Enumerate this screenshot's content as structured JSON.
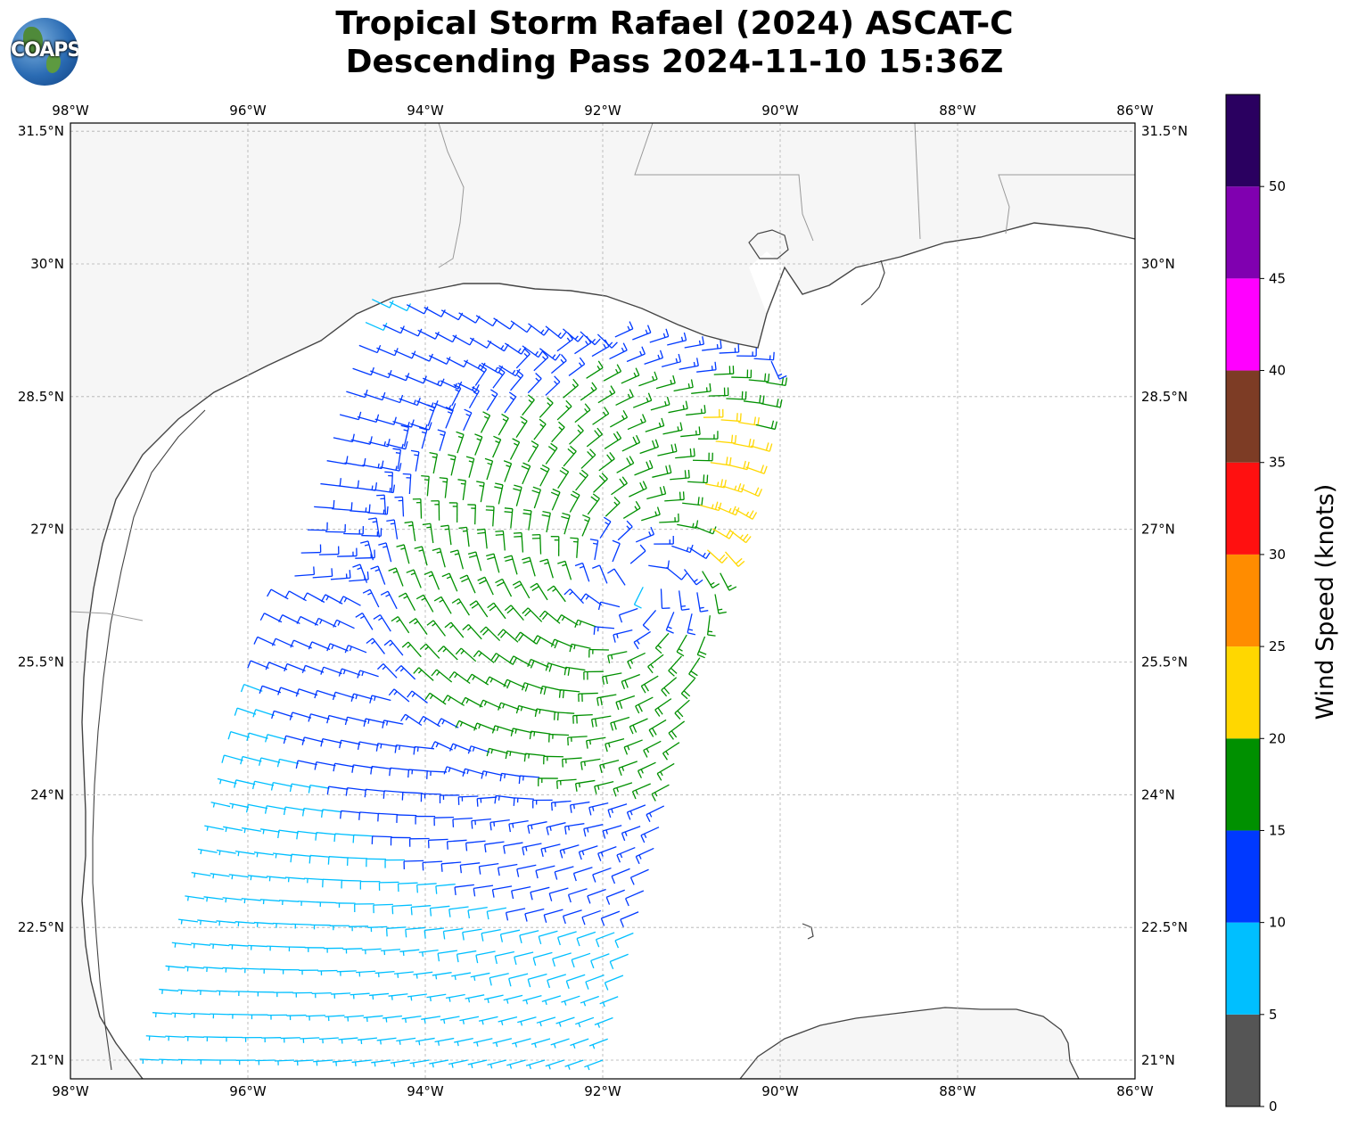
{
  "header": {
    "title_line1": "Tropical Storm Rafael (2024) ASCAT-C",
    "title_line2": "Descending Pass 2024-11-10 15:36Z",
    "logo_text": "COAPS"
  },
  "map": {
    "lon_range": [
      -98,
      -86
    ],
    "lat_range": [
      20.8,
      31.6
    ],
    "lon_ticks": [
      {
        "value": -98,
        "label": "98°W"
      },
      {
        "value": -96,
        "label": "96°W"
      },
      {
        "value": -94,
        "label": "94°W"
      },
      {
        "value": -92,
        "label": "92°W"
      },
      {
        "value": -90,
        "label": "90°W"
      },
      {
        "value": -88,
        "label": "88°W"
      },
      {
        "value": -86,
        "label": "86°W"
      }
    ],
    "lat_ticks": [
      {
        "value": 31.5,
        "label": "31.5°N"
      },
      {
        "value": 30,
        "label": "30°N"
      },
      {
        "value": 28.5,
        "label": "28.5°N"
      },
      {
        "value": 27,
        "label": "27°N"
      },
      {
        "value": 25.5,
        "label": "25.5°N"
      },
      {
        "value": 24,
        "label": "24°N"
      },
      {
        "value": 22.5,
        "label": "22.5°N"
      },
      {
        "value": 21,
        "label": "21°N"
      }
    ],
    "gridlines": true,
    "storm_center": {
      "lon": -91.6,
      "lat": 26.4
    },
    "swath_corners": [
      {
        "lon": -97.0,
        "lat": 21.0
      },
      {
        "lon": -94.6,
        "lat": 29.6
      },
      {
        "lon": -90.1,
        "lat": 28.9
      },
      {
        "lon": -92.0,
        "lat": 21.0
      }
    ]
  },
  "colorbar": {
    "label": "Wind Speed (knots)",
    "bins": [
      {
        "min": 0,
        "max": 5,
        "color": "#555555"
      },
      {
        "min": 5,
        "max": 10,
        "color": "#00bfff"
      },
      {
        "min": 10,
        "max": 15,
        "color": "#0039ff"
      },
      {
        "min": 15,
        "max": 20,
        "color": "#009000"
      },
      {
        "min": 20,
        "max": 25,
        "color": "#ffd700"
      },
      {
        "min": 25,
        "max": 30,
        "color": "#ff8c00"
      },
      {
        "min": 30,
        "max": 35,
        "color": "#ff1010"
      },
      {
        "min": 35,
        "max": 40,
        "color": "#7d3c25"
      },
      {
        "min": 40,
        "max": 45,
        "color": "#ff00ff"
      },
      {
        "min": 45,
        "max": 50,
        "color": "#8000b0"
      },
      {
        "min": 50,
        "max": 55,
        "color": "#2a0060"
      }
    ],
    "ticks": [
      "0",
      "5",
      "10",
      "15",
      "20",
      "25",
      "30",
      "35",
      "40",
      "45",
      "50"
    ]
  }
}
